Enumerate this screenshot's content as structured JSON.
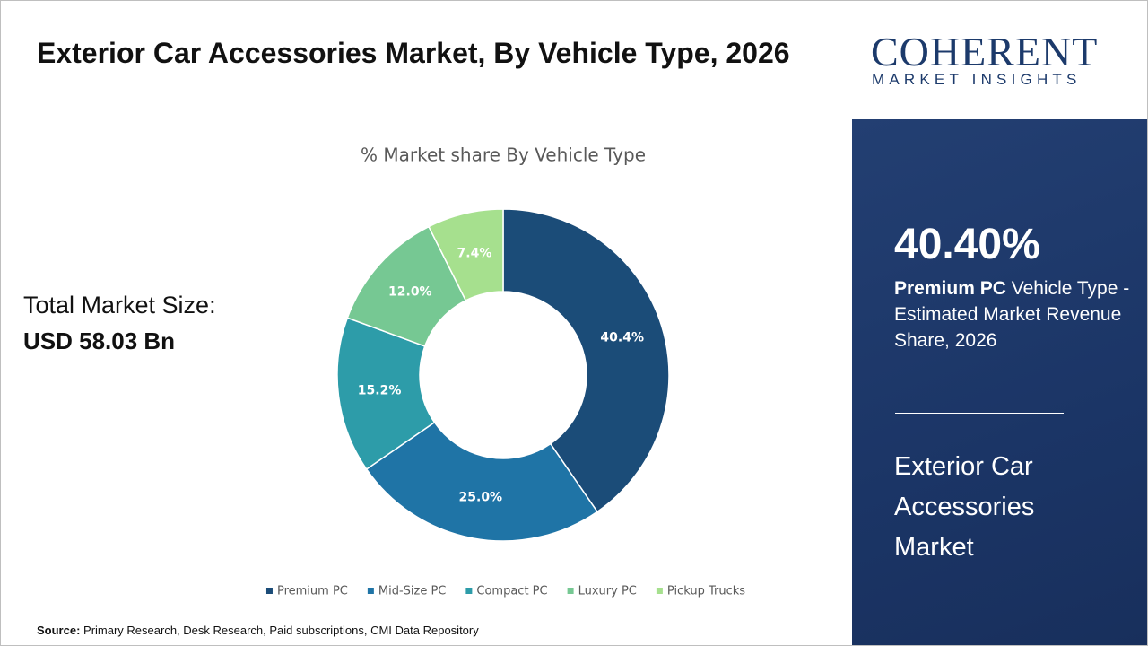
{
  "header": {
    "title": "Exterior Car Accessories Market, By Vehicle Type, 2026"
  },
  "market_size": {
    "label": "Total Market Size:",
    "value": "USD 58.03 Bn"
  },
  "chart_data": {
    "type": "pie",
    "title": "% Market share By Vehicle Type",
    "categories": [
      "Premium PC",
      "Mid-Size PC",
      "Compact PC",
      "Luxury PC",
      "Pickup Trucks"
    ],
    "values": [
      40.4,
      25.0,
      15.2,
      12.0,
      7.4
    ],
    "value_labels": [
      "40.4%",
      "25.0%",
      "15.2%",
      "12.0%",
      "7.4%"
    ],
    "colors": [
      "#1b4c78",
      "#1f74a6",
      "#2d9ca9",
      "#76c893",
      "#a6e08e"
    ],
    "donut": true,
    "legend": "bottom"
  },
  "logo": {
    "name": "COHERENT",
    "tagline": "MARKET INSIGHTS"
  },
  "highlight": {
    "value": "40.40%",
    "segment": "Premium PC",
    "description": "Vehicle Type - Estimated Market Revenue Share, 2026",
    "market": "Exterior Car Accessories Market"
  },
  "source": {
    "label": "Source:",
    "text": "Primary Research, Desk Research, Paid subscriptions, CMI Data Repository"
  }
}
